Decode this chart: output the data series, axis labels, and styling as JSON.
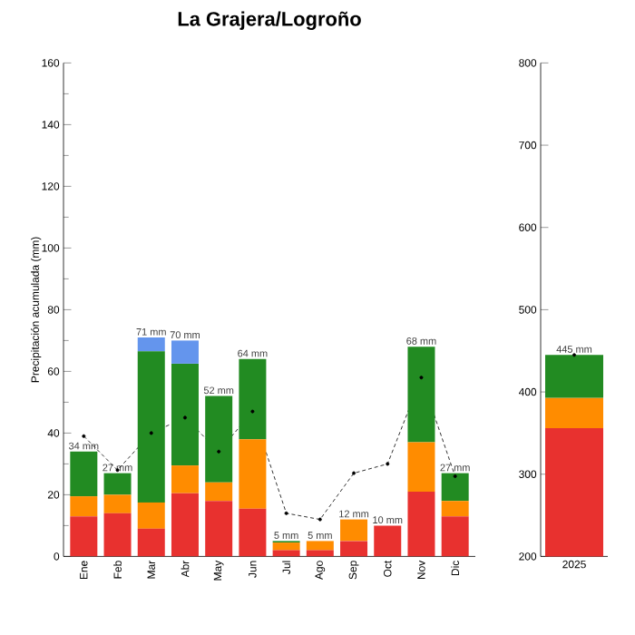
{
  "chart_data": [
    {
      "type": "bar",
      "stacked": true,
      "title": "La Grajera/Logroño",
      "ylabel": "Precipitación acumulada (mm)",
      "categories": [
        "Ene",
        "Feb",
        "Mar",
        "Abr",
        "May",
        "Jun",
        "Jul",
        "Ago",
        "Sep",
        "Oct",
        "Nov",
        "Dic"
      ],
      "series": [
        {
          "color": "#e8312f",
          "values": [
            13,
            14,
            9,
            20.5,
            18,
            15.5,
            2,
            2,
            5,
            10,
            21,
            13
          ]
        },
        {
          "color": "#ff8c00",
          "values": [
            6.5,
            6,
            8.5,
            9,
            6,
            22.5,
            2.5,
            3,
            7,
            0,
            16,
            5
          ]
        },
        {
          "color": "#228b22",
          "values": [
            14.5,
            7,
            49,
            33,
            28,
            26,
            0.5,
            0,
            0,
            0,
            31,
            9
          ]
        },
        {
          "color": "#6495ed",
          "values": [
            0,
            0,
            4.5,
            7.5,
            0,
            0,
            0,
            0,
            0,
            0,
            0,
            0
          ]
        },
        {
          "type": "line",
          "color": "#000000",
          "line_style": "dashed",
          "marker": "circle",
          "values": [
            39,
            28,
            40,
            45,
            34,
            47,
            14,
            12,
            27,
            30,
            58,
            26
          ]
        }
      ],
      "totals": [
        "34 mm",
        "27 mm",
        "71 mm",
        "70 mm",
        "52 mm",
        "64 mm",
        "5 mm",
        "5 mm",
        "12 mm",
        "10 mm",
        "68 mm",
        "27 mm"
      ],
      "ylim": [
        0,
        160
      ],
      "yticks": [
        0,
        20,
        40,
        60,
        80,
        100,
        120,
        140,
        160
      ]
    },
    {
      "type": "bar",
      "stacked": true,
      "categories": [
        "2025"
      ],
      "series": [
        {
          "color": "#e8312f",
          "values": [
            356
          ]
        },
        {
          "color": "#ff8c00",
          "base": [
            356
          ],
          "values": [
            37
          ]
        },
        {
          "color": "#228b22",
          "base": [
            393
          ],
          "values": [
            52
          ]
        },
        {
          "type": "line",
          "color": "#000000",
          "line_style": "dashed",
          "marker": "circle",
          "values": [
            445
          ]
        }
      ],
      "totals": [
        "445 mm"
      ],
      "ylim": [
        200,
        800
      ],
      "yticks": [
        200,
        300,
        400,
        500,
        600,
        700,
        800
      ]
    }
  ]
}
